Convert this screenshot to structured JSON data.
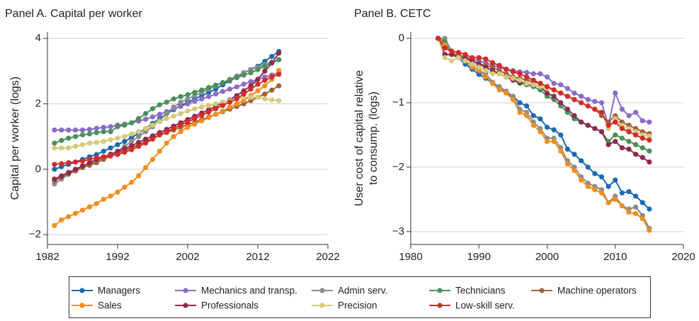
{
  "chart_data": [
    {
      "type": "line",
      "title": "Panel A. Capital per worker",
      "ylabel": [
        "Capital per worker (logs)"
      ],
      "grid": true,
      "xlim": [
        1982,
        2022
      ],
      "xticks": [
        1982,
        1992,
        2002,
        2012,
        2022
      ],
      "ylim": [
        -2.3,
        4.2
      ],
      "yticks": [
        {
          "value": -2,
          "label": "−2"
        },
        0,
        2,
        4
      ],
      "x": [
        1983,
        1984,
        1985,
        1986,
        1987,
        1988,
        1989,
        1990,
        1991,
        1992,
        1993,
        1994,
        1995,
        1996,
        1997,
        1998,
        1999,
        2000,
        2001,
        2002,
        2003,
        2004,
        2005,
        2006,
        2007,
        2008,
        2009,
        2010,
        2011,
        2012,
        2013,
        2014,
        2015
      ],
      "series": [
        {
          "name": "Managers",
          "color": "#1a6ab0",
          "values": [
            0.0,
            0.08,
            0.15,
            0.22,
            0.3,
            0.38,
            0.45,
            0.55,
            0.65,
            0.75,
            0.85,
            0.97,
            1.1,
            1.25,
            1.4,
            1.55,
            1.7,
            1.82,
            1.95,
            2.05,
            2.15,
            2.25,
            2.35,
            2.45,
            2.58,
            2.7,
            2.82,
            2.95,
            3.05,
            3.15,
            3.3,
            3.45,
            3.6
          ]
        },
        {
          "name": "Mechanics and transp.",
          "color": "#8a6cc4",
          "values": [
            1.2,
            1.2,
            1.2,
            1.2,
            1.2,
            1.22,
            1.25,
            1.28,
            1.3,
            1.35,
            1.38,
            1.42,
            1.47,
            1.53,
            1.6,
            1.68,
            1.76,
            1.85,
            1.92,
            2.0,
            2.08,
            2.15,
            2.22,
            2.3,
            2.38,
            2.45,
            2.52,
            2.6,
            2.68,
            2.75,
            2.82,
            2.88,
            2.95
          ]
        },
        {
          "name": "Admin serv.",
          "color": "#8c8c8c",
          "values": [
            -0.45,
            -0.3,
            -0.15,
            -0.05,
            0.05,
            0.15,
            0.25,
            0.35,
            0.45,
            0.55,
            0.7,
            0.85,
            1.0,
            1.15,
            1.3,
            1.5,
            1.7,
            1.9,
            2.05,
            2.15,
            2.25,
            2.35,
            2.45,
            2.55,
            2.65,
            2.75,
            2.85,
            2.95,
            3.05,
            3.12,
            3.2,
            3.28,
            3.35
          ]
        },
        {
          "name": "Technicians",
          "color": "#4b8f5b",
          "values": [
            0.8,
            0.88,
            0.95,
            1.0,
            1.05,
            1.08,
            1.12,
            1.15,
            1.15,
            1.3,
            1.35,
            1.42,
            1.55,
            1.7,
            1.85,
            1.97,
            2.05,
            2.15,
            2.22,
            2.28,
            2.35,
            2.42,
            2.5,
            2.57,
            2.65,
            2.72,
            2.8,
            2.88,
            2.95,
            3.05,
            3.15,
            3.25,
            3.35
          ]
        },
        {
          "name": "Machine operators",
          "color": "#a0623a",
          "values": [
            -0.35,
            -0.25,
            -0.15,
            -0.05,
            0.05,
            0.12,
            0.2,
            0.3,
            0.4,
            0.5,
            0.58,
            0.66,
            0.75,
            0.85,
            0.95,
            1.05,
            1.12,
            1.2,
            1.28,
            1.36,
            1.44,
            1.52,
            1.6,
            1.68,
            1.76,
            1.84,
            1.92,
            2.0,
            2.1,
            2.2,
            2.3,
            2.42,
            2.55
          ]
        },
        {
          "name": "Sales",
          "color": "#f28e1c",
          "values": [
            -1.72,
            -1.55,
            -1.45,
            -1.35,
            -1.25,
            -1.15,
            -1.05,
            -0.92,
            -0.82,
            -0.7,
            -0.55,
            -0.4,
            -0.2,
            0.05,
            0.3,
            0.55,
            0.8,
            1.0,
            1.15,
            1.28,
            1.38,
            1.48,
            1.58,
            1.68,
            1.78,
            1.9,
            2.0,
            2.1,
            2.25,
            2.4,
            2.55,
            2.75,
            3.02
          ]
        },
        {
          "name": "Professionals",
          "color": "#8b2b4e",
          "values": [
            -0.3,
            -0.2,
            -0.1,
            0.0,
            0.1,
            0.2,
            0.3,
            0.38,
            0.46,
            0.55,
            0.63,
            0.72,
            0.82,
            0.92,
            1.02,
            1.12,
            1.22,
            1.32,
            1.42,
            1.52,
            1.62,
            1.72,
            1.82,
            1.92,
            2.02,
            2.12,
            2.25,
            2.4,
            2.55,
            2.75,
            3.0,
            3.25,
            3.55
          ]
        },
        {
          "name": "Precision",
          "color": "#d6c97a",
          "values": [
            0.65,
            0.65,
            0.65,
            0.7,
            0.75,
            0.8,
            0.82,
            0.85,
            0.9,
            0.95,
            1.0,
            1.08,
            1.15,
            1.25,
            1.35,
            1.45,
            1.55,
            1.62,
            1.7,
            1.78,
            1.85,
            1.9,
            1.95,
            2.0,
            2.05,
            2.1,
            2.15,
            2.2,
            2.2,
            2.2,
            2.15,
            2.12,
            2.1
          ]
        },
        {
          "name": "Low-skill serv.",
          "color": "#d62a2a",
          "values": [
            0.15,
            0.17,
            0.2,
            0.22,
            0.25,
            0.3,
            0.35,
            0.38,
            0.42,
            0.45,
            0.52,
            0.6,
            0.7,
            0.8,
            0.92,
            1.05,
            1.15,
            1.25,
            1.35,
            1.45,
            1.55,
            1.65,
            1.75,
            1.85,
            1.95,
            2.05,
            2.15,
            2.3,
            2.45,
            2.6,
            2.72,
            2.82,
            2.9
          ]
        }
      ]
    },
    {
      "type": "line",
      "title": "Panel B. CETC",
      "ylabel": [
        "User cost of capital relative",
        "to consump. (logs)"
      ],
      "grid": true,
      "xlim": [
        1980,
        2020
      ],
      "xticks": [
        1980,
        1990,
        2000,
        2010,
        2020
      ],
      "ylim": [
        -3.2,
        0.1
      ],
      "yticks": [
        {
          "value": -3,
          "label": "−3"
        },
        {
          "value": -2,
          "label": "−2"
        },
        {
          "value": -1,
          "label": "−1"
        },
        0
      ],
      "x": [
        1984,
        1985,
        1986,
        1987,
        1988,
        1989,
        1990,
        1991,
        1992,
        1993,
        1994,
        1995,
        1996,
        1997,
        1998,
        1999,
        2000,
        2001,
        2002,
        2003,
        2004,
        2005,
        2006,
        2007,
        2008,
        2009,
        2010,
        2011,
        2012,
        2013,
        2014,
        2015
      ],
      "series": [
        {
          "color": "#1a6ab0",
          "values": [
            0,
            -0.1,
            -0.2,
            -0.3,
            -0.4,
            -0.48,
            -0.56,
            -0.62,
            -0.7,
            -0.78,
            -0.85,
            -0.9,
            -1.0,
            -1.05,
            -1.2,
            -1.25,
            -1.38,
            -1.42,
            -1.5,
            -1.72,
            -1.8,
            -1.9,
            -2.0,
            -2.1,
            -2.15,
            -2.3,
            -2.2,
            -2.4,
            -2.38,
            -2.45,
            -2.55,
            -2.65
          ]
        },
        {
          "color": "#8a6cc4",
          "values": [
            0,
            -0.05,
            -0.25,
            -0.28,
            -0.3,
            -0.32,
            -0.35,
            -0.38,
            -0.42,
            -0.45,
            -0.48,
            -0.5,
            -0.52,
            -0.53,
            -0.55,
            -0.55,
            -0.6,
            -0.7,
            -0.72,
            -0.78,
            -0.85,
            -0.9,
            -0.95,
            -0.98,
            -1.0,
            -1.35,
            -0.85,
            -1.1,
            -1.2,
            -1.15,
            -1.28,
            -1.3
          ]
        },
        {
          "color": "#8c8c8c",
          "values": [
            0,
            0.0,
            -0.2,
            -0.3,
            -0.35,
            -0.42,
            -0.5,
            -0.55,
            -0.68,
            -0.75,
            -0.82,
            -0.9,
            -1.1,
            -1.15,
            -1.3,
            -1.4,
            -1.55,
            -1.55,
            -1.7,
            -1.9,
            -2.0,
            -2.15,
            -2.25,
            -2.3,
            -2.35,
            -2.55,
            -2.45,
            -2.6,
            -2.65,
            -2.62,
            -2.75,
            -2.95
          ]
        },
        {
          "color": "#4b8f5b",
          "values": [
            0,
            -0.05,
            -0.25,
            -0.28,
            -0.3,
            -0.35,
            -0.4,
            -0.45,
            -0.5,
            -0.55,
            -0.6,
            -0.65,
            -0.7,
            -0.72,
            -0.75,
            -0.8,
            -0.9,
            -0.95,
            -1.05,
            -1.15,
            -1.25,
            -1.3,
            -1.35,
            -1.4,
            -1.45,
            -1.6,
            -1.5,
            -1.55,
            -1.6,
            -1.65,
            -1.7,
            -1.75
          ]
        },
        {
          "color": "#a0623a",
          "values": [
            0,
            -0.25,
            -0.25,
            -0.25,
            -0.3,
            -0.35,
            -0.4,
            -0.42,
            -0.45,
            -0.5,
            -0.55,
            -0.6,
            -0.62,
            -0.65,
            -0.68,
            -0.7,
            -0.75,
            -0.8,
            -0.85,
            -0.9,
            -0.95,
            -1.0,
            -1.05,
            -1.1,
            -1.2,
            -1.3,
            -1.2,
            -1.3,
            -1.35,
            -1.4,
            -1.45,
            -1.48
          ]
        },
        {
          "color": "#f28e1c",
          "values": [
            0,
            -0.1,
            -0.25,
            -0.3,
            -0.35,
            -0.45,
            -0.5,
            -0.6,
            -0.7,
            -0.8,
            -0.85,
            -0.95,
            -1.15,
            -1.2,
            -1.35,
            -1.45,
            -1.6,
            -1.6,
            -1.75,
            -1.95,
            -2.05,
            -2.2,
            -2.3,
            -2.35,
            -2.4,
            -2.55,
            -2.5,
            -2.6,
            -2.7,
            -2.72,
            -2.8,
            -2.98
          ]
        },
        {
          "color": "#8b2b4e",
          "values": [
            0,
            -0.25,
            -0.25,
            -0.3,
            -0.32,
            -0.35,
            -0.4,
            -0.45,
            -0.5,
            -0.55,
            -0.6,
            -0.65,
            -0.68,
            -0.7,
            -0.72,
            -0.75,
            -0.85,
            -0.9,
            -1.0,
            -1.1,
            -1.2,
            -1.3,
            -1.35,
            -1.4,
            -1.45,
            -1.65,
            -1.6,
            -1.7,
            -1.72,
            -1.8,
            -1.85,
            -1.92
          ]
        },
        {
          "color": "#d6c97a",
          "values": [
            0,
            -0.3,
            -0.35,
            -0.3,
            -0.35,
            -0.4,
            -0.45,
            -0.5,
            -0.55,
            -0.55,
            -0.6,
            -0.62,
            -0.65,
            -0.7,
            -0.72,
            -0.75,
            -0.78,
            -0.8,
            -0.85,
            -0.9,
            -0.95,
            -1.0,
            -1.05,
            -1.1,
            -1.15,
            -1.4,
            -1.25,
            -1.35,
            -1.4,
            -1.45,
            -1.5,
            -1.52
          ]
        },
        {
          "color": "#d62a2a",
          "values": [
            0,
            -0.15,
            -0.2,
            -0.22,
            -0.25,
            -0.3,
            -0.3,
            -0.32,
            -0.38,
            -0.42,
            -0.48,
            -0.52,
            -0.55,
            -0.6,
            -0.65,
            -0.7,
            -0.75,
            -0.8,
            -0.85,
            -0.9,
            -0.95,
            -1.0,
            -1.05,
            -1.1,
            -1.15,
            -1.35,
            -1.3,
            -1.4,
            -1.45,
            -1.5,
            -1.55,
            -1.58
          ]
        }
      ]
    }
  ]
}
